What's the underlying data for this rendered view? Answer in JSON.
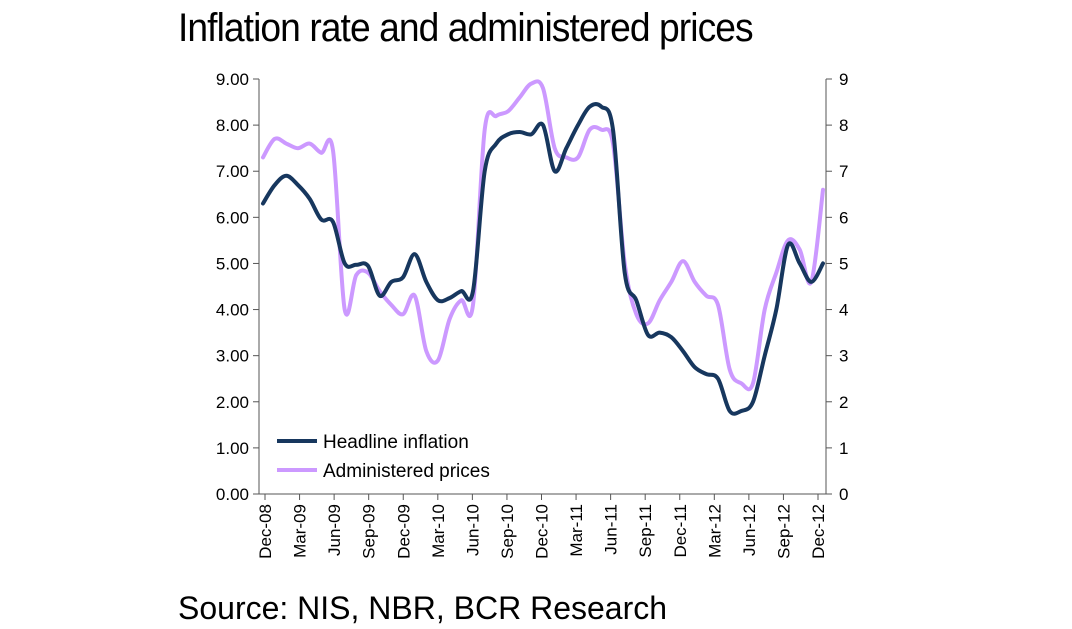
{
  "title": "Inflation rate and administered prices",
  "source": "Source: NIS, NBR, BCR Research",
  "chart_data": {
    "type": "line",
    "title": "Inflation rate and administered prices",
    "x_labels": [
      "Dec-08",
      "Mar-09",
      "Jun-09",
      "Sep-09",
      "Dec-09",
      "Mar-10",
      "Jun-10",
      "Sep-10",
      "Dec-10",
      "Mar-11",
      "Jun-11",
      "Sep-11",
      "Dec-11",
      "Mar-12",
      "Jun-12",
      "Sep-12",
      "Dec-12"
    ],
    "y_left": {
      "ylim": [
        0,
        9
      ],
      "ticks": [
        "0.00",
        "1.00",
        "2.00",
        "3.00",
        "4.00",
        "5.00",
        "6.00",
        "7.00",
        "8.00",
        "9.00"
      ]
    },
    "y_right": {
      "ylim": [
        0,
        9
      ],
      "ticks": [
        "0",
        "1",
        "2",
        "3",
        "4",
        "5",
        "6",
        "7",
        "8",
        "9"
      ]
    },
    "legend": {
      "position": "bottom-left"
    },
    "grid": false,
    "series": [
      {
        "name": "Headline inflation",
        "color": "#17375E",
        "axis": "left",
        "values": [
          6.3,
          6.7,
          6.9,
          6.7,
          6.4,
          5.95,
          5.9,
          5.0,
          4.97,
          4.95,
          4.3,
          4.6,
          4.7,
          5.2,
          4.6,
          4.2,
          4.25,
          4.4,
          4.4,
          7.0,
          7.6,
          7.8,
          7.85,
          7.8,
          8.0,
          7.0,
          7.5,
          8.0,
          8.4,
          8.4,
          7.9,
          4.8,
          4.2,
          3.45,
          3.5,
          3.4,
          3.1,
          2.75,
          2.6,
          2.5,
          1.8,
          1.8,
          2.0,
          3.0,
          4.0,
          5.4,
          5.0,
          4.6,
          5.0
        ]
      },
      {
        "name": "Administered prices",
        "color": "#CC99FF",
        "axis": "right",
        "values": [
          7.3,
          7.7,
          7.6,
          7.5,
          7.6,
          7.4,
          7.45,
          4.0,
          4.75,
          4.8,
          4.4,
          4.1,
          3.9,
          4.3,
          3.1,
          2.9,
          3.8,
          4.2,
          4.1,
          7.9,
          8.2,
          8.3,
          8.6,
          8.9,
          8.8,
          7.5,
          7.3,
          7.3,
          7.9,
          7.9,
          7.6,
          5.0,
          3.9,
          3.7,
          4.2,
          4.6,
          5.05,
          4.6,
          4.3,
          4.1,
          2.7,
          2.4,
          2.4,
          4.0,
          4.8,
          5.5,
          5.3,
          4.6,
          6.6
        ]
      }
    ]
  }
}
